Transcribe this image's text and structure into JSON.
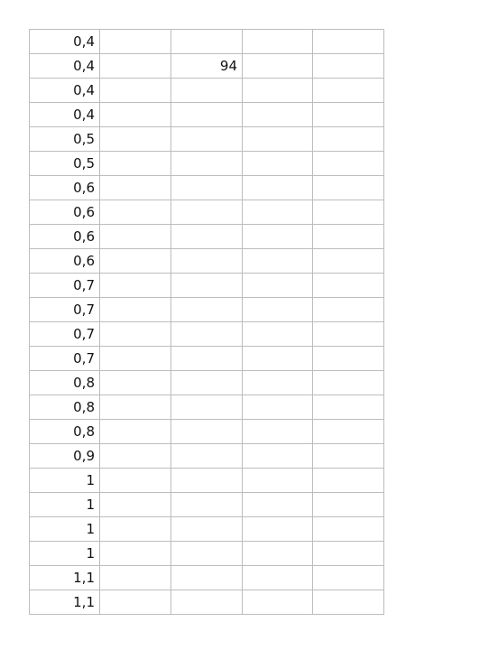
{
  "sheet": {
    "rows": [
      [
        "0,4",
        "",
        "",
        "",
        ""
      ],
      [
        "0,4",
        "",
        "94",
        "",
        ""
      ],
      [
        "0,4",
        "",
        "",
        "",
        ""
      ],
      [
        "0,4",
        "",
        "",
        "",
        ""
      ],
      [
        "0,5",
        "",
        "",
        "",
        ""
      ],
      [
        "0,5",
        "",
        "",
        "",
        ""
      ],
      [
        "0,6",
        "",
        "",
        "",
        ""
      ],
      [
        "0,6",
        "",
        "",
        "",
        ""
      ],
      [
        "0,6",
        "",
        "",
        "",
        ""
      ],
      [
        "0,6",
        "",
        "",
        "",
        ""
      ],
      [
        "0,7",
        "",
        "",
        "",
        ""
      ],
      [
        "0,7",
        "",
        "",
        "",
        ""
      ],
      [
        "0,7",
        "",
        "",
        "",
        ""
      ],
      [
        "0,7",
        "",
        "",
        "",
        ""
      ],
      [
        "0,8",
        "",
        "",
        "",
        ""
      ],
      [
        "0,8",
        "",
        "",
        "",
        ""
      ],
      [
        "0,8",
        "",
        "",
        "",
        ""
      ],
      [
        "0,9",
        "",
        "",
        "",
        ""
      ],
      [
        "1",
        "",
        "",
        "",
        ""
      ],
      [
        "1",
        "",
        "",
        "",
        ""
      ],
      [
        "1",
        "",
        "",
        "",
        ""
      ],
      [
        "1",
        "",
        "",
        "",
        ""
      ],
      [
        "1,1",
        "",
        "",
        "",
        ""
      ],
      [
        "1,1",
        "",
        "",
        "",
        ""
      ]
    ]
  }
}
